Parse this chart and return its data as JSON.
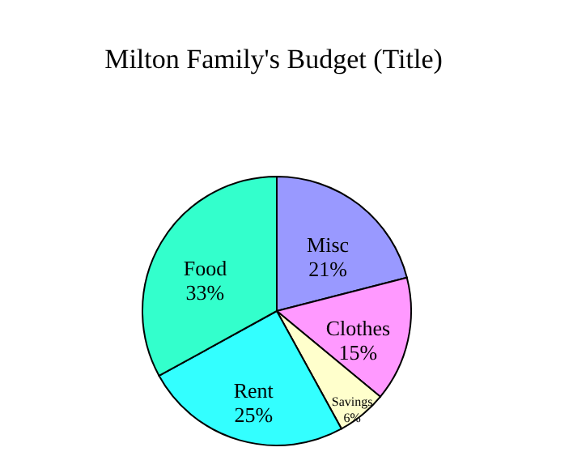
{
  "chart_data": {
    "type": "pie",
    "title": "Milton Family's Budget (Title)",
    "categories": [
      "Misc",
      "Clothes",
      "Savings",
      "Rent",
      "Food"
    ],
    "values": [
      21,
      15,
      6,
      25,
      33
    ],
    "value_labels": [
      "21%",
      "15%",
      "6%",
      "25%",
      "33%"
    ],
    "colors": [
      "#9999ff",
      "#ff99ff",
      "#ffffcc",
      "#33ffff",
      "#33ffcc"
    ],
    "legend": false
  }
}
